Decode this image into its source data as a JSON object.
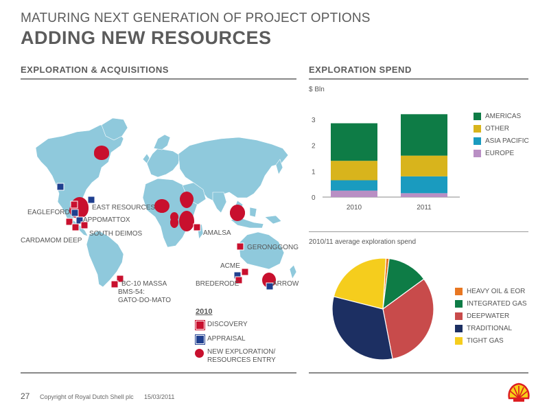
{
  "header": {
    "subtitle": "MATURING NEXT GENERATION OF PROJECT OPTIONS",
    "title": "ADDING NEW RESOURCES"
  },
  "left_section": {
    "title": "EXPLORATION & ACQUISITIONS",
    "map_labels": {
      "eagleford": "EAGLEFORD",
      "east_resources": "EAST RESOURCES",
      "appomattox": "APPOMATTOX",
      "south_deimos": "SOUTH DEIMOS",
      "cardamom_deep": "CARDAMOM DEEP",
      "amalsa": "AMALSA",
      "gerongong": "GERONGGONG",
      "acme": "ACME",
      "brederode": "BREDERODE",
      "arrow": "ARROW",
      "bc10": "BC-10 MASSA",
      "bms54": "BMS-54:",
      "gato": "GATO-DO-MATO"
    },
    "legend": {
      "year": "2010",
      "discovery": "DISCOVERY",
      "appraisal": "APPRAISAL",
      "new_entry_1": "NEW EXPLORATION/",
      "new_entry_2": "RESOURCES ENTRY"
    },
    "colors": {
      "discovery": "#c8102e",
      "appraisal": "#1f3f8f",
      "map": "#8fc9dc",
      "entry": "#c8102e"
    }
  },
  "right_section": {
    "title": "EXPLORATION SPEND",
    "pie_title": "2010/11 average exploration spend"
  },
  "chart_data": [
    {
      "type": "bar",
      "stacked": true,
      "ylabel": "$ Bln",
      "ylim": [
        0,
        3.5
      ],
      "yticks": [
        "0",
        "1",
        "2",
        "3"
      ],
      "categories": [
        "2010",
        "2011"
      ],
      "series": [
        {
          "name": "EUROPE",
          "color": "#b98fc4",
          "values": [
            0.25,
            0.15
          ]
        },
        {
          "name": "ASIA PACIFIC",
          "color": "#1a9bbf",
          "values": [
            0.4,
            0.65
          ]
        },
        {
          "name": "OTHER",
          "color": "#d8b41c",
          "values": [
            0.75,
            0.8
          ]
        },
        {
          "name": "AMERICAS",
          "color": "#0e7c46",
          "values": [
            1.45,
            1.6
          ]
        }
      ],
      "legend_order": [
        "AMERICAS",
        "OTHER",
        "ASIA PACIFIC",
        "EUROPE"
      ]
    },
    {
      "type": "pie",
      "title": "2010/11 average exploration spend",
      "slices": [
        {
          "name": "HEAVY OIL & EOR",
          "color": "#e87722",
          "value": 1
        },
        {
          "name": "INTEGRATED GAS",
          "color": "#0e7c46",
          "value": 13
        },
        {
          "name": "DEEPWATER",
          "color": "#c84b4b",
          "value": 32
        },
        {
          "name": "TRADITIONAL",
          "color": "#1c2f62",
          "value": 32
        },
        {
          "name": "TIGHT GAS",
          "color": "#f5cd1d",
          "value": 22
        }
      ]
    }
  ],
  "footer": {
    "page": "27",
    "copyright": "Copyright of Royal Dutch Shell plc",
    "date": "15/03/2011"
  }
}
